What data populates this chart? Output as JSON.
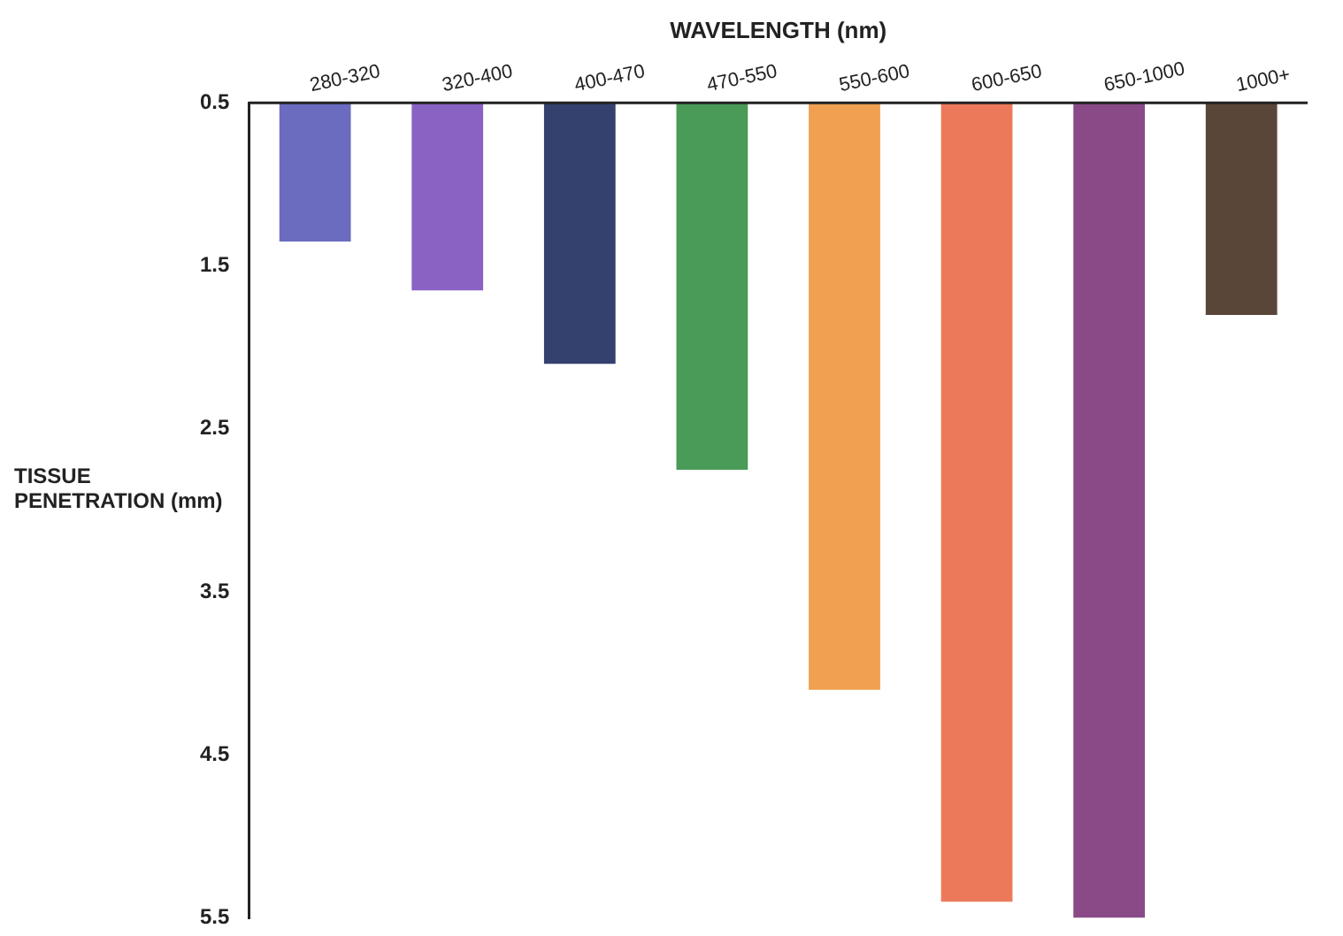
{
  "chart_data": {
    "type": "bar",
    "xlabel": "WAVELENGTH (nm)",
    "ylabel": "TISSUE PENETRATION (mm)",
    "categories": [
      "280-320",
      "320-400",
      "400-470",
      "470-550",
      "550-600",
      "600-650",
      "650-1000",
      "1000+"
    ],
    "values": [
      1.35,
      1.65,
      2.1,
      2.75,
      4.1,
      5.4,
      5.5,
      1.8
    ],
    "colors": [
      "#6b6bc0",
      "#8a62c4",
      "#34406e",
      "#4a9a58",
      "#f0a050",
      "#ec7a5a",
      "#8a4a88",
      "#5a4638"
    ],
    "ylim": [
      5.5,
      0.5
    ],
    "yticks": [
      0.5,
      1.5,
      2.5,
      3.5,
      4.5,
      5.5
    ],
    "grid": false,
    "legend": false
  }
}
